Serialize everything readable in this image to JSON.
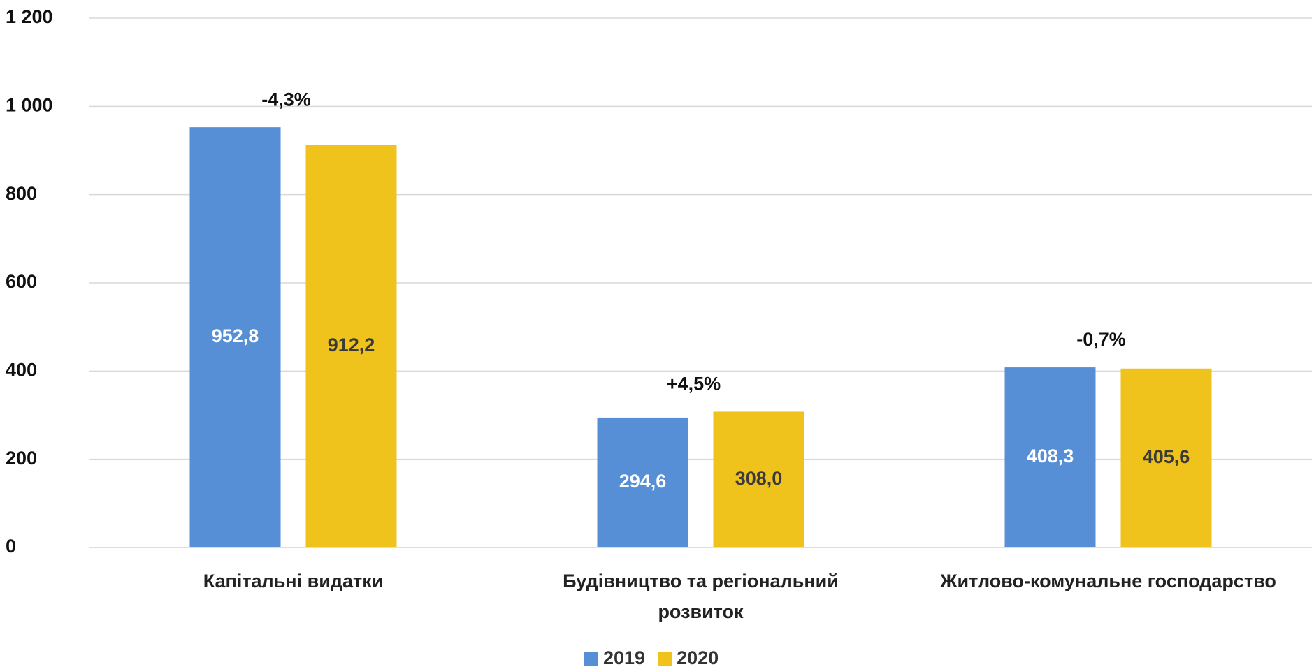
{
  "chart_data": {
    "type": "bar",
    "categories": [
      "Капітальні видатки",
      "Будівництво та регіональний розвиток",
      "Житлово-комунальне господарство"
    ],
    "series": [
      {
        "name": "2019",
        "color": "#568fd6",
        "values": [
          952.8,
          294.6,
          408.3
        ],
        "value_labels": [
          "952,8",
          "294,6",
          "408,3"
        ]
      },
      {
        "name": "2020",
        "color": "#f0c31c",
        "values": [
          912.2,
          308.0,
          405.6
        ],
        "value_labels": [
          "912,2",
          "308,0",
          "405,6"
        ]
      }
    ],
    "annotations": [
      "-4,3%",
      "+4,5%",
      "-0,7%"
    ],
    "ylim": [
      0,
      1200
    ],
    "yticks": [
      0,
      200,
      400,
      600,
      800,
      {
        "value": 1000,
        "label": "1 000"
      },
      {
        "value": 1200,
        "label": "1 200"
      }
    ],
    "grid": true
  }
}
